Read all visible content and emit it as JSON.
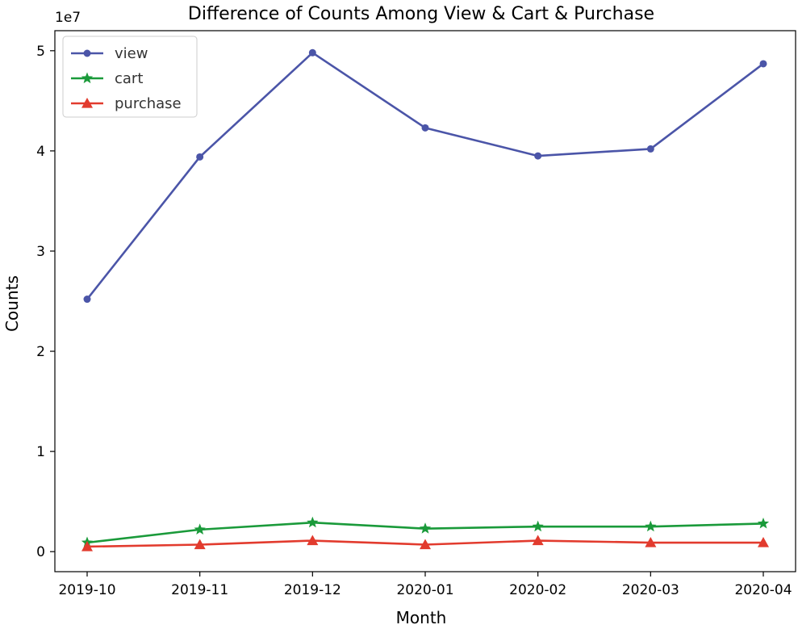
{
  "chart_data": {
    "type": "line",
    "title": "Difference of Counts Among View & Cart & Purchase",
    "xlabel": "Month",
    "ylabel": "Counts",
    "y_scale_label": "1e7",
    "categories": [
      "2019-10",
      "2019-11",
      "2019-12",
      "2020-01",
      "2020-02",
      "2020-03",
      "2020-04"
    ],
    "yticks": [
      0,
      1,
      2,
      3,
      4,
      5
    ],
    "ylim": [
      -0.2,
      5.2
    ],
    "legend_position": "top-left",
    "grid": false,
    "series": [
      {
        "name": "view",
        "color": "#4b55a8",
        "marker": "circle",
        "values": [
          2.52,
          3.94,
          4.98,
          4.23,
          3.95,
          4.02,
          4.87
        ]
      },
      {
        "name": "cart",
        "color": "#1a9a3a",
        "marker": "star",
        "values": [
          0.09,
          0.22,
          0.29,
          0.23,
          0.25,
          0.25,
          0.28
        ]
      },
      {
        "name": "purchase",
        "color": "#e23b2e",
        "marker": "triangle",
        "values": [
          0.05,
          0.07,
          0.11,
          0.07,
          0.11,
          0.09,
          0.09
        ]
      }
    ]
  }
}
